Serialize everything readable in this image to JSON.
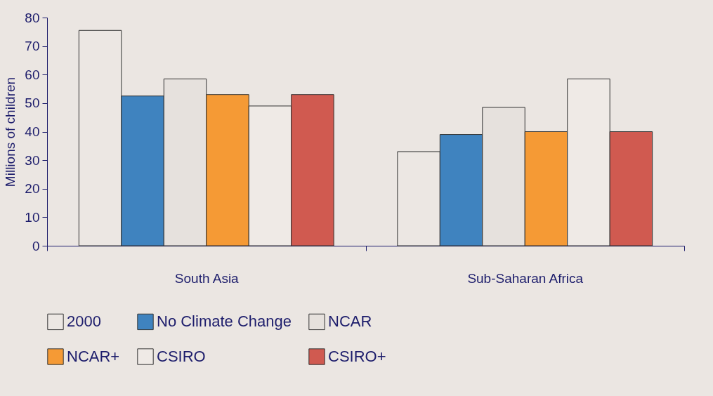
{
  "chart_data": {
    "type": "bar",
    "ylabel": "Millions of children",
    "categories": [
      "South Asia",
      "Sub-Saharan Africa"
    ],
    "series": [
      {
        "name": "2000",
        "color": "#ece7e3",
        "values": [
          75.5,
          33
        ]
      },
      {
        "name": "No Climate Change",
        "color": "#3f83bf",
        "values": [
          52.5,
          39
        ]
      },
      {
        "name": "NCAR",
        "color": "#e6e1dd",
        "values": [
          58.5,
          48.5
        ]
      },
      {
        "name": "NCAR+",
        "color": "#f59a35",
        "values": [
          53,
          40
        ]
      },
      {
        "name": "CSIRO",
        "color": "#efeae6",
        "values": [
          49,
          58.5
        ]
      },
      {
        "name": "CSIRO+",
        "color": "#d05a50",
        "values": [
          53,
          40
        ]
      }
    ],
    "ylim": [
      0,
      80
    ],
    "yticks": [
      0,
      10,
      20,
      30,
      40,
      50,
      60,
      70,
      80
    ],
    "grid": false,
    "legend": "bottom"
  }
}
